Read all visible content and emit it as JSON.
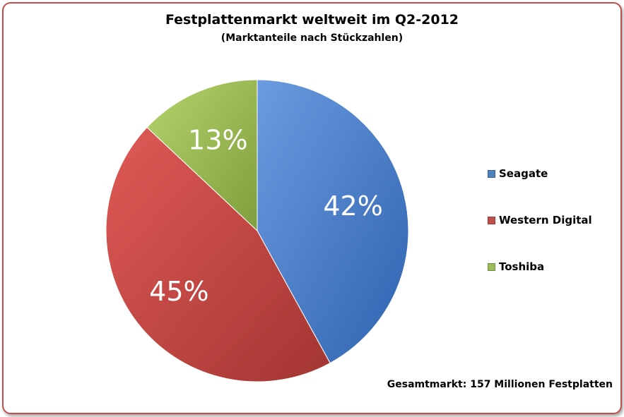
{
  "chart_data": {
    "type": "pie",
    "title": "Festplattenmarkt weltweit im Q2-2012",
    "subtitle": "(Marktanteile nach Stückzahlen)",
    "slices": [
      {
        "name": "Seagate",
        "value": 42,
        "label": "42%",
        "color": "#4f81bd"
      },
      {
        "name": "Western Digital",
        "value": 45,
        "label": "45%",
        "color": "#c0504d"
      },
      {
        "name": "Toshiba",
        "value": 13,
        "label": "13%",
        "color": "#9bbb59"
      }
    ],
    "legend_position": "right",
    "annotation": "Gesamtmarkt: 157 Millionen Festplatten"
  }
}
